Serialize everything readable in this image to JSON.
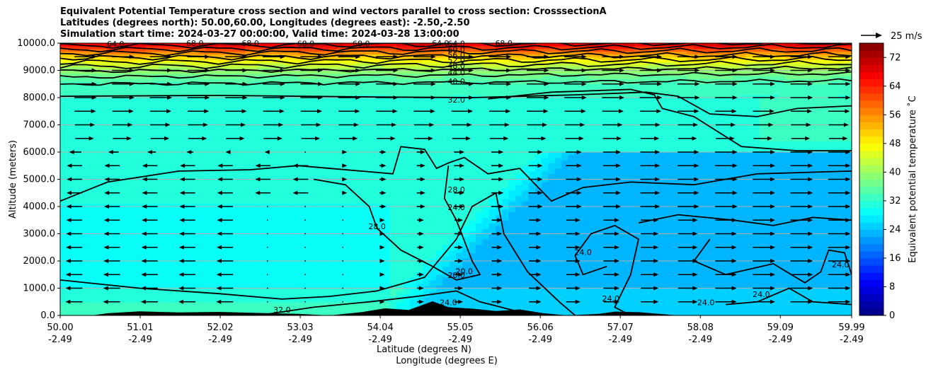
{
  "title_lines": [
    "Equivalent Potential Temperature cross section and wind vectors parallel to cross section: CrosssectionA",
    "Latitudes (degrees north): 50.00,60.00, Longitudes (degrees east): -2.50,-2.50",
    "Simulation start time: 2024-03-27 00:00:00, Valid time: 2024-03-28 13:00:00"
  ],
  "chart_data": {
    "type": "heatmap",
    "subtype": "filled-contour cross section with contour lines, wind vectors and terrain",
    "ylabel": "Altitude (meters)",
    "xlabel_lines": [
      "Latitude (degrees N)",
      "Longitude (degrees E)"
    ],
    "ylim": [
      0,
      10000
    ],
    "xlim": [
      50.0,
      59.99
    ],
    "y_ticks": [
      "0.0",
      "1000.0",
      "2000.0",
      "3000.0",
      "4000.0",
      "5000.0",
      "6000.0",
      "7000.0",
      "8000.0",
      "9000.0",
      "10000.0"
    ],
    "x_ticks": [
      {
        "lat": "50.00",
        "lon": "-2.49"
      },
      {
        "lat": "51.01",
        "lon": "-2.49"
      },
      {
        "lat": "52.02",
        "lon": "-2.49"
      },
      {
        "lat": "53.03",
        "lon": "-2.49"
      },
      {
        "lat": "54.04",
        "lon": "-2.49"
      },
      {
        "lat": "55.05",
        "lon": "-2.49"
      },
      {
        "lat": "56.06",
        "lon": "-2.49"
      },
      {
        "lat": "57.07",
        "lon": "-2.49"
      },
      {
        "lat": "58.08",
        "lon": "-2.49"
      },
      {
        "lat": "59.09",
        "lon": "-2.49"
      },
      {
        "lat": "59.99",
        "lon": "-2.49"
      }
    ],
    "grid": "horizontal lines at y ticks",
    "colorbar": {
      "label": "Equivalent potential temperature ˚C",
      "range": [
        0,
        76
      ],
      "ticks": [
        "0",
        "8",
        "16",
        "24",
        "32",
        "40",
        "48",
        "56",
        "64",
        "72"
      ],
      "colormap": "jet"
    },
    "wind_key": {
      "label": "25 m/s"
    },
    "contour_labels": [
      {
        "text": "64.0",
        "lat": 50.7,
        "alt": 9950
      },
      {
        "text": "68.0",
        "lat": 51.7,
        "alt": 9970
      },
      {
        "text": "68.0",
        "lat": 52.4,
        "alt": 9970
      },
      {
        "text": "68.0",
        "lat": 53.1,
        "alt": 9960
      },
      {
        "text": "68.0",
        "lat": 53.8,
        "alt": 9960
      },
      {
        "text": "64.0",
        "lat": 54.8,
        "alt": 9970
      },
      {
        "text": "64.0",
        "lat": 55.0,
        "alt": 9960
      },
      {
        "text": "60.0",
        "lat": 55.0,
        "alt": 9740
      },
      {
        "text": "56.0",
        "lat": 55.0,
        "alt": 9540
      },
      {
        "text": "52.0",
        "lat": 55.0,
        "alt": 9350
      },
      {
        "text": "48.0",
        "lat": 55.0,
        "alt": 9140
      },
      {
        "text": "44.0",
        "lat": 55.0,
        "alt": 8900
      },
      {
        "text": "40.0",
        "lat": 55.0,
        "alt": 8570
      },
      {
        "text": "68.0",
        "lat": 55.6,
        "alt": 9970
      },
      {
        "text": "32.0",
        "lat": 55.0,
        "alt": 7900
      },
      {
        "text": "28.0",
        "lat": 55.0,
        "alt": 4600
      },
      {
        "text": "24.0",
        "lat": 55.0,
        "alt": 3950
      },
      {
        "text": "28.0",
        "lat": 54.0,
        "alt": 3250
      },
      {
        "text": "20.0",
        "lat": 55.0,
        "alt": 1450
      },
      {
        "text": "20.0",
        "lat": 55.1,
        "alt": 1600
      },
      {
        "text": "24.0",
        "lat": 54.9,
        "alt": 450
      },
      {
        "text": "32.0",
        "lat": 52.8,
        "alt": 180
      },
      {
        "text": "24.0",
        "lat": 56.6,
        "alt": 2300
      },
      {
        "text": "24.0",
        "lat": 56.95,
        "alt": 600
      },
      {
        "text": "24.0",
        "lat": 58.15,
        "alt": 450
      },
      {
        "text": "24.0",
        "lat": 58.85,
        "alt": 750
      },
      {
        "text": "24.0",
        "lat": 59.85,
        "alt": 1850
      }
    ]
  }
}
